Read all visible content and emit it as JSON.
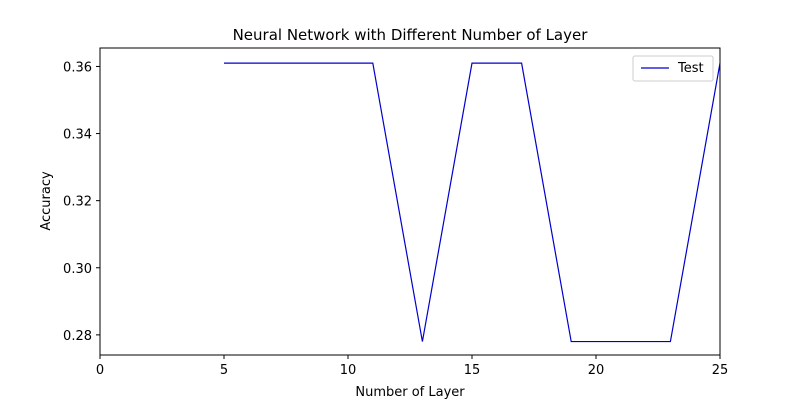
{
  "chart_data": {
    "type": "line",
    "title": "Neural Network with Different Number of Layer",
    "xlabel": "Number of Layer",
    "ylabel": "Accuracy",
    "xlim": [
      0,
      25
    ],
    "ylim": [
      0.274,
      0.3655
    ],
    "xticks": [
      0,
      5,
      10,
      15,
      20,
      25
    ],
    "yticks": [
      0.28,
      0.3,
      0.32,
      0.34,
      0.36
    ],
    "ytick_labels": [
      "0.28",
      "0.30",
      "0.32",
      "0.34",
      "0.36"
    ],
    "grid": false,
    "legend": {
      "position": "top-right"
    },
    "series": [
      {
        "name": "Test",
        "color": "#0000cc",
        "x": [
          5,
          7,
          9,
          11,
          13,
          15,
          17,
          19,
          21,
          23,
          25
        ],
        "y": [
          0.361,
          0.361,
          0.361,
          0.361,
          0.278,
          0.361,
          0.361,
          0.278,
          0.278,
          0.278,
          0.361
        ]
      }
    ]
  }
}
